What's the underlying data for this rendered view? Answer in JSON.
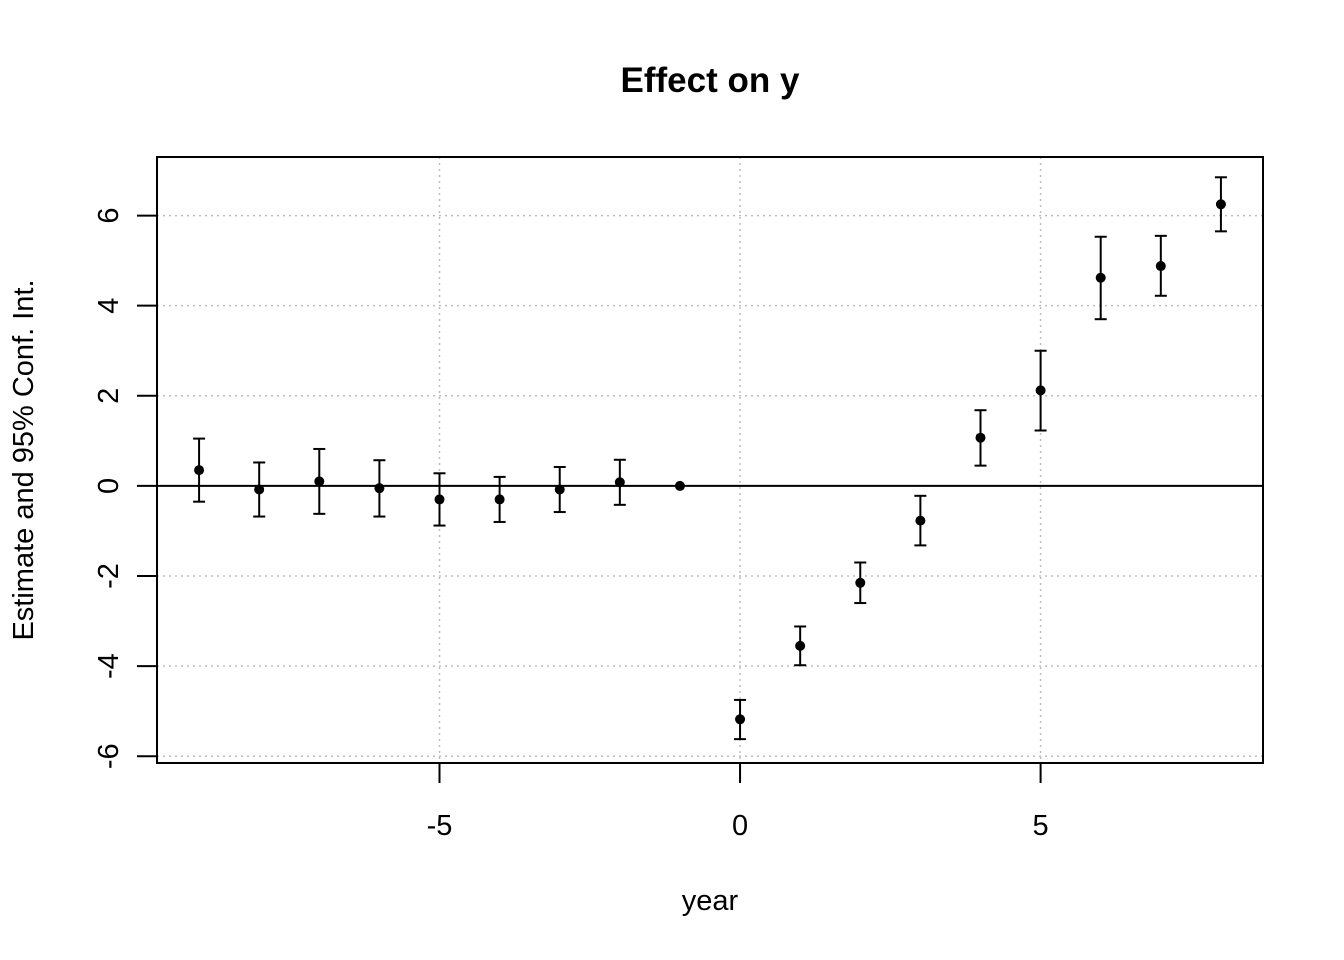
{
  "chart_data": {
    "type": "scatter",
    "title": "Effect on y",
    "xlabel": "year",
    "ylabel": "Estimate and 95% Conf. Int.",
    "xlim": [
      -9.7,
      8.7
    ],
    "ylim": [
      -6.15,
      7.3
    ],
    "x_ticks": [
      -5,
      0,
      5
    ],
    "x_tick_labels": [
      "-5",
      "0",
      "5"
    ],
    "y_ticks": [
      -6,
      -4,
      -2,
      0,
      2,
      4,
      6
    ],
    "y_tick_labels": [
      "-6",
      "-4",
      "-2",
      "0",
      "2",
      "4",
      "6"
    ],
    "grid": true,
    "reference_line_y": 0,
    "points": [
      {
        "x": -9,
        "y": 0.35,
        "lower": -0.35,
        "upper": 1.05
      },
      {
        "x": -8,
        "y": -0.08,
        "lower": -0.68,
        "upper": 0.52
      },
      {
        "x": -7,
        "y": 0.1,
        "lower": -0.62,
        "upper": 0.82
      },
      {
        "x": -6,
        "y": -0.05,
        "lower": -0.68,
        "upper": 0.57
      },
      {
        "x": -5,
        "y": -0.3,
        "lower": -0.88,
        "upper": 0.28
      },
      {
        "x": -4,
        "y": -0.3,
        "lower": -0.8,
        "upper": 0.2
      },
      {
        "x": -3,
        "y": -0.08,
        "lower": -0.58,
        "upper": 0.42
      },
      {
        "x": -2,
        "y": 0.08,
        "lower": -0.42,
        "upper": 0.58
      },
      {
        "x": -1,
        "y": 0,
        "lower": 0,
        "upper": 0
      },
      {
        "x": 0,
        "y": -5.18,
        "lower": -5.62,
        "upper": -4.75
      },
      {
        "x": 1,
        "y": -3.55,
        "lower": -3.98,
        "upper": -3.12
      },
      {
        "x": 2,
        "y": -2.15,
        "lower": -2.6,
        "upper": -1.7
      },
      {
        "x": 3,
        "y": -0.77,
        "lower": -1.32,
        "upper": -0.22
      },
      {
        "x": 4,
        "y": 1.07,
        "lower": 0.45,
        "upper": 1.68
      },
      {
        "x": 5,
        "y": 2.12,
        "lower": 1.23,
        "upper": 3.0
      },
      {
        "x": 6,
        "y": 4.62,
        "lower": 3.7,
        "upper": 5.53
      },
      {
        "x": 7,
        "y": 4.88,
        "lower": 4.22,
        "upper": 5.55
      },
      {
        "x": 8,
        "y": 6.25,
        "lower": 5.65,
        "upper": 6.85
      }
    ]
  }
}
